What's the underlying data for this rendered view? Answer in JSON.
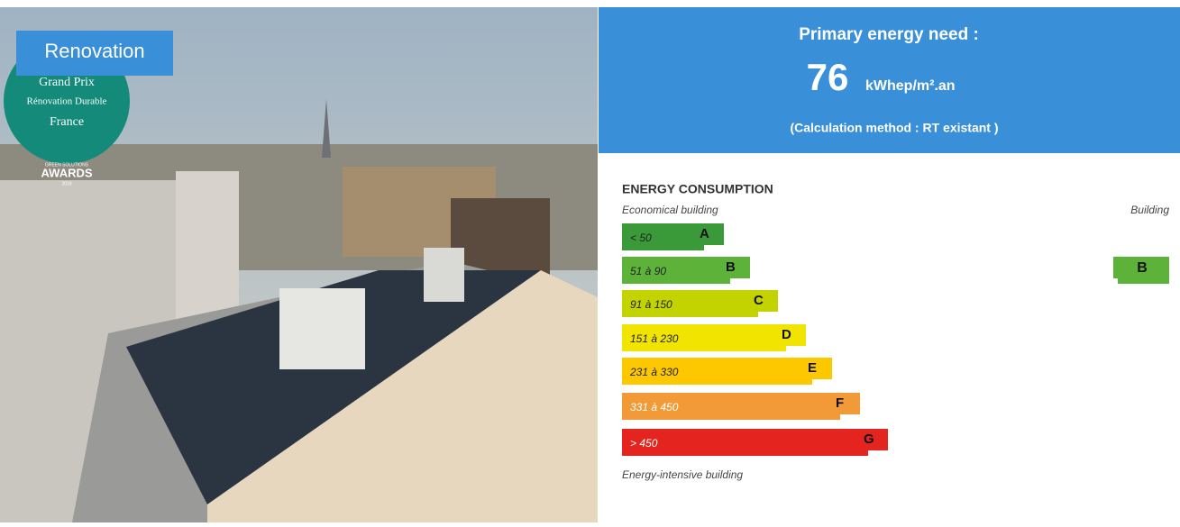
{
  "photo": {
    "tag": "Renovation",
    "badge": {
      "line1": "Grand Prix",
      "line2": "Rénovation Durable",
      "line3": "France",
      "small": "GREEN SOLUTIONS",
      "awards": "AWARDS",
      "year": "2019"
    }
  },
  "header": {
    "title": "Primary energy need :",
    "value": "76",
    "unit": "kWhep/m².an",
    "method": "(Calculation method : RT existant )"
  },
  "label": {
    "title": "ENERGY CONSUMPTION",
    "top_left": "Economical building",
    "top_right": "Building",
    "bottom": "Energy-intensive building",
    "classes": [
      {
        "range": "< 50",
        "letter": "A",
        "color": "#3a9a3a"
      },
      {
        "range": "51 à 90",
        "letter": "B",
        "color": "#5db33a"
      },
      {
        "range": "91 à 150",
        "letter": "C",
        "color": "#c3d300"
      },
      {
        "range": "151 à 230",
        "letter": "D",
        "color": "#f0e400"
      },
      {
        "range": "231 à 330",
        "letter": "E",
        "color": "#fdc800"
      },
      {
        "range": "331 à 450",
        "letter": "F",
        "color": "#f29a38"
      },
      {
        "range": "> 450",
        "letter": "G",
        "color": "#e3241f"
      }
    ],
    "building_class": {
      "letter": "B",
      "color": "#5db33a"
    }
  }
}
